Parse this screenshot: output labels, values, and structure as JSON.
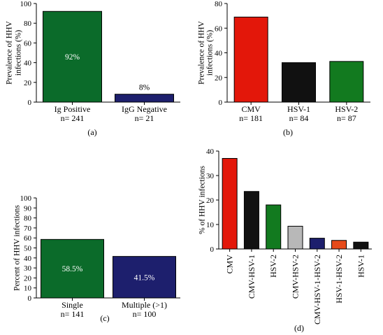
{
  "chart_data": [
    {
      "type": "bar",
      "panel": "(a)",
      "ylabel": [
        "Prevalence of HHV",
        "infections (%)"
      ],
      "ylim": [
        0,
        100
      ],
      "yticks": [
        0,
        20,
        40,
        60,
        80,
        100
      ],
      "categories": [
        [
          "Ig Positive",
          "n= 241"
        ],
        [
          "IgG Negative",
          "n= 21"
        ]
      ],
      "values": [
        92,
        8
      ],
      "colors": [
        "#0b6b2a",
        "#1d1f6d"
      ],
      "data_labels": [
        "92%",
        "8%"
      ]
    },
    {
      "type": "bar",
      "panel": "(b)",
      "ylabel": [
        "Prevalence of HHV",
        "infections (%)"
      ],
      "ylim": [
        0,
        80
      ],
      "yticks": [
        0,
        20,
        40,
        60,
        80
      ],
      "categories": [
        [
          "CMV",
          "n= 181"
        ],
        [
          "HSV-1",
          "n= 84"
        ],
        [
          "HSV-2",
          "n= 87"
        ]
      ],
      "values": [
        69,
        32,
        33
      ],
      "colors": [
        "#e3170a",
        "#111111",
        "#127a1f"
      ],
      "data_labels": []
    },
    {
      "type": "bar",
      "panel": "(c)",
      "ylabel": [
        "Percent of HHV infections"
      ],
      "ylim": [
        0,
        100
      ],
      "yticks": [
        0,
        10,
        20,
        30,
        40,
        50,
        60,
        70,
        80,
        90,
        100
      ],
      "categories": [
        [
          "Single",
          "n= 141"
        ],
        [
          "Multiple (>1)",
          "n= 100"
        ]
      ],
      "values": [
        58.5,
        41.5
      ],
      "colors": [
        "#0b6b2a",
        "#1d1f6d"
      ],
      "data_labels": [
        "58.5%",
        "41.5%"
      ]
    },
    {
      "type": "bar",
      "panel": "(d)",
      "ylabel": [
        "% of HHV infections"
      ],
      "ylim": [
        0,
        40
      ],
      "yticks": [
        0,
        10,
        20,
        30,
        40
      ],
      "categories": [
        [
          "CMV"
        ],
        [
          "CMV-HSV-1"
        ],
        [
          "HSV-2"
        ],
        [
          "CMV-HSV-2"
        ],
        [
          "CMV-HSV-1-HSV-2"
        ],
        [
          "HSV-1-HSV-2"
        ],
        [
          "HSV-1"
        ]
      ],
      "values": [
        37,
        23.5,
        18,
        9.3,
        4.4,
        3.5,
        2.8
      ],
      "colors": [
        "#e3170a",
        "#111111",
        "#127a1f",
        "#b8b8b8",
        "#1d1f6d",
        "#e64a19",
        "#111111"
      ],
      "data_labels": []
    }
  ]
}
